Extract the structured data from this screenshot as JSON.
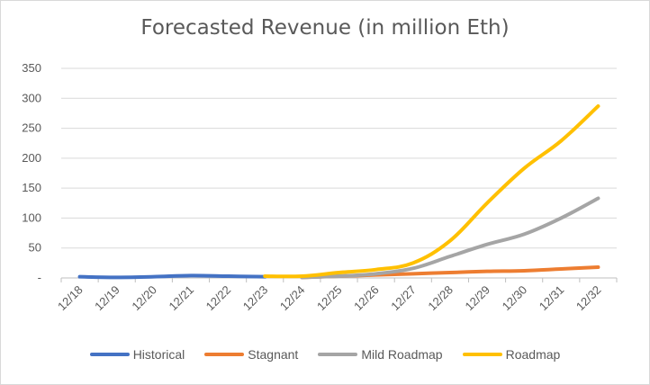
{
  "chart_data": {
    "type": "line",
    "title": "Forecasted Revenue (in million Eth)",
    "xlabel": "",
    "ylabel": "",
    "categories": [
      "12/18",
      "12/19",
      "12/20",
      "12/21",
      "12/22",
      "12/23",
      "12/24",
      "12/25",
      "12/26",
      "12/27",
      "12/28",
      "12/29",
      "12/30",
      "12/31",
      "12/32"
    ],
    "ylim": [
      0,
      350
    ],
    "yticks": [
      {
        "value": 0,
        "label": "-"
      },
      {
        "value": 50,
        "label": "50"
      },
      {
        "value": 100,
        "label": "100"
      },
      {
        "value": 150,
        "label": "150"
      },
      {
        "value": 200,
        "label": "200"
      },
      {
        "value": 250,
        "label": "250"
      },
      {
        "value": 300,
        "label": "300"
      },
      {
        "value": 350,
        "label": "350"
      }
    ],
    "grid": "horizontal",
    "legend_position": "bottom",
    "series": [
      {
        "name": "Historical",
        "color": "#4472C4",
        "values": [
          2,
          1,
          2,
          4,
          3,
          2,
          null,
          null,
          null,
          null,
          null,
          null,
          null,
          null,
          null
        ]
      },
      {
        "name": "Stagnant",
        "color": "#ED7D31",
        "values": [
          null,
          null,
          null,
          null,
          null,
          null,
          1,
          3,
          5,
          7,
          9,
          11,
          12,
          15,
          18
        ]
      },
      {
        "name": "Mild Roadmap",
        "color": "#A5A5A5",
        "values": [
          null,
          null,
          null,
          null,
          null,
          null,
          1,
          3,
          7,
          16,
          36,
          56,
          73,
          100,
          133
        ]
      },
      {
        "name": "Roadmap",
        "color": "#FFC000",
        "values": [
          null,
          null,
          null,
          null,
          null,
          3,
          3,
          9,
          14,
          25,
          62,
          125,
          183,
          229,
          287
        ]
      }
    ]
  }
}
